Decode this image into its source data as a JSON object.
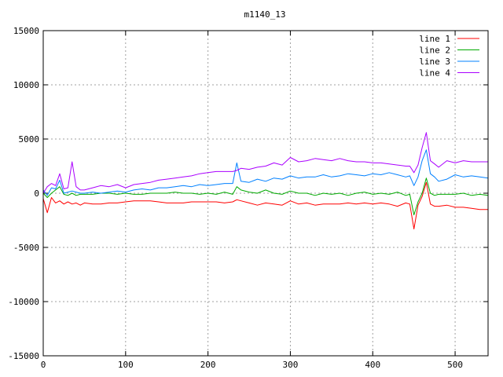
{
  "chart_data": {
    "type": "line",
    "title": "m1140_13",
    "xlabel": "",
    "ylabel": "",
    "xlim": [
      0,
      540
    ],
    "ylim": [
      -15000,
      15000
    ],
    "x_ticks": [
      0,
      100,
      200,
      300,
      400,
      500
    ],
    "y_ticks": [
      -15000,
      -10000,
      -5000,
      0,
      5000,
      10000,
      15000
    ],
    "x_tick_labels": [
      "0",
      "100",
      "200",
      "300",
      "400",
      "500"
    ],
    "y_tick_labels": [
      "-15000",
      "-10000",
      "-5000",
      "0",
      "5000",
      "10000",
      "15000"
    ],
    "grid": true,
    "legend_position": "top-right",
    "x": [
      0,
      5,
      10,
      15,
      20,
      25,
      30,
      35,
      40,
      45,
      50,
      60,
      70,
      80,
      90,
      100,
      110,
      120,
      130,
      140,
      150,
      160,
      170,
      180,
      190,
      200,
      210,
      220,
      230,
      235,
      240,
      250,
      260,
      270,
      280,
      290,
      300,
      310,
      320,
      330,
      340,
      350,
      360,
      370,
      380,
      390,
      400,
      410,
      420,
      430,
      440,
      445,
      450,
      455,
      460,
      465,
      470,
      475,
      480,
      490,
      500,
      510,
      520,
      530,
      540
    ],
    "series": [
      {
        "name": "line 1",
        "color": "#ff0000",
        "values": [
          -500,
          -1800,
          -400,
          -900,
          -700,
          -1000,
          -800,
          -1000,
          -900,
          -1100,
          -900,
          -1000,
          -1000,
          -900,
          -900,
          -800,
          -700,
          -700,
          -700,
          -800,
          -900,
          -900,
          -900,
          -800,
          -800,
          -800,
          -800,
          -900,
          -800,
          -600,
          -700,
          -900,
          -1100,
          -900,
          -1000,
          -1100,
          -700,
          -1000,
          -900,
          -1100,
          -1000,
          -1000,
          -1000,
          -900,
          -1000,
          -900,
          -1000,
          -900,
          -1000,
          -1200,
          -900,
          -1000,
          -3300,
          -1100,
          -300,
          1000,
          -1000,
          -1200,
          -1200,
          -1100,
          -1300,
          -1300,
          -1400,
          -1500,
          -1500
        ]
      },
      {
        "name": "line 2",
        "color": "#00aa00",
        "values": [
          0,
          -400,
          0,
          300,
          600,
          -100,
          -200,
          0,
          -200,
          -100,
          -100,
          -100,
          0,
          0,
          -100,
          0,
          -100,
          -100,
          0,
          0,
          0,
          100,
          0,
          0,
          -100,
          0,
          -100,
          100,
          -100,
          600,
          300,
          100,
          0,
          300,
          0,
          -100,
          200,
          0,
          0,
          -200,
          0,
          -100,
          0,
          -200,
          0,
          100,
          -100,
          0,
          -100,
          100,
          -200,
          -100,
          -2000,
          -800,
          0,
          1400,
          0,
          -200,
          -100,
          -100,
          -100,
          0,
          -200,
          -100,
          -200
        ]
      },
      {
        "name": "line 3",
        "color": "#0080ff",
        "values": [
          300,
          -200,
          500,
          400,
          1200,
          0,
          100,
          200,
          100,
          0,
          0,
          100,
          0,
          100,
          200,
          100,
          300,
          400,
          300,
          500,
          500,
          600,
          700,
          600,
          800,
          700,
          800,
          900,
          900,
          2800,
          1100,
          1000,
          1300,
          1100,
          1400,
          1300,
          1600,
          1400,
          1500,
          1500,
          1700,
          1500,
          1600,
          1800,
          1700,
          1600,
          1800,
          1700,
          1900,
          1700,
          1500,
          1600,
          700,
          1500,
          3000,
          4000,
          1800,
          1500,
          1100,
          1300,
          1700,
          1500,
          1600,
          1500,
          1400
        ]
      },
      {
        "name": "line 4",
        "color": "#aa00ff",
        "values": [
          0,
          600,
          900,
          700,
          1800,
          400,
          500,
          2900,
          600,
          300,
          300,
          500,
          700,
          600,
          800,
          500,
          800,
          900,
          1000,
          1200,
          1300,
          1400,
          1500,
          1600,
          1800,
          1900,
          2000,
          2000,
          2000,
          2100,
          2300,
          2200,
          2400,
          2500,
          2800,
          2600,
          3300,
          2900,
          3000,
          3200,
          3100,
          3000,
          3200,
          3000,
          2900,
          2900,
          2800,
          2800,
          2700,
          2600,
          2500,
          2500,
          1900,
          2600,
          4200,
          5600,
          3000,
          2700,
          2400,
          3000,
          2800,
          3000,
          2900,
          2900,
          2900
        ]
      }
    ]
  }
}
